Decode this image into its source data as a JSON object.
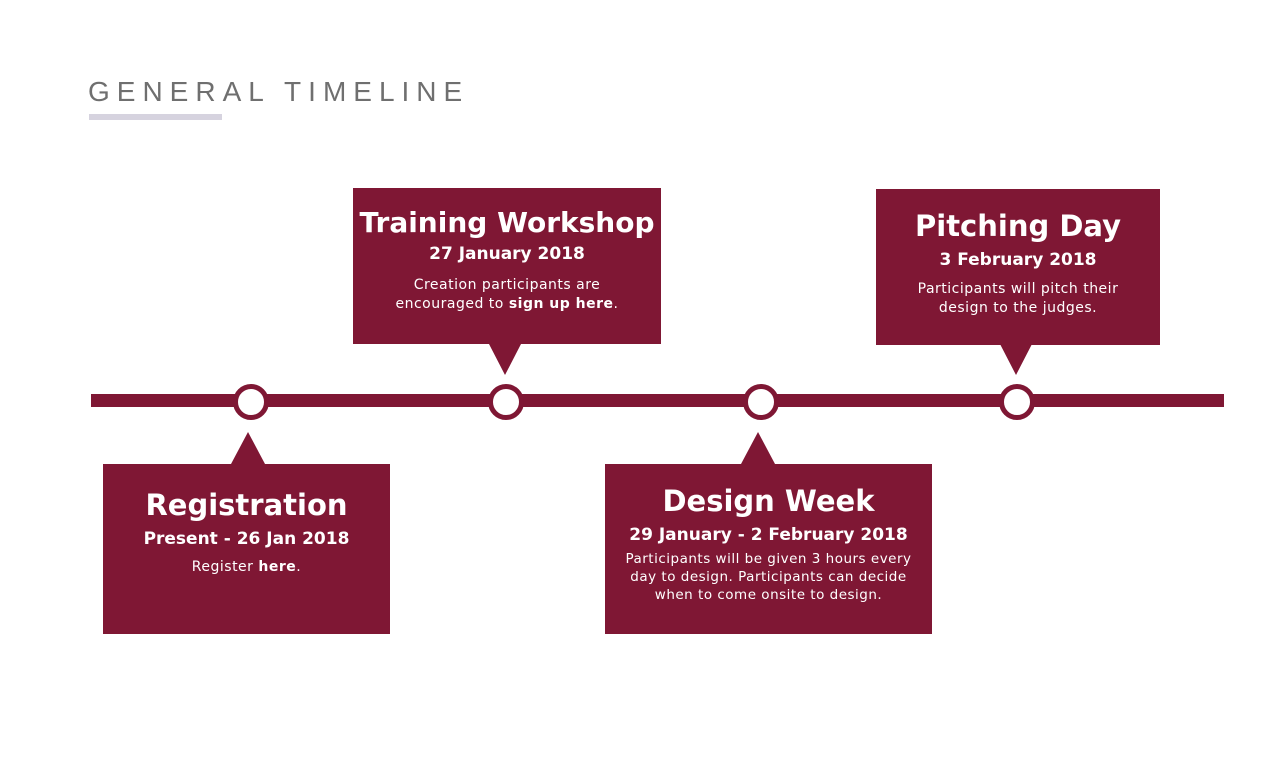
{
  "heading": "GENERAL TIMELINE",
  "colors": {
    "accent": "#7f1734",
    "heading_text": "#6f6f6f",
    "underline": "#d6d3df"
  },
  "events": [
    {
      "title": "Registration",
      "date": "Present - 26 Jan 2018",
      "desc_before": "Register ",
      "link": "here",
      "desc_after": "."
    },
    {
      "title": "Training Workshop",
      "date": "27 January 2018",
      "desc_before": "Creation participants are encouraged to ",
      "link": "sign up here",
      "desc_after": "."
    },
    {
      "title": "Design Week",
      "date": "29 January - 2 February 2018",
      "desc": "Participants will be given 3 hours every day to design. Participants can decide when to come onsite to design."
    },
    {
      "title": "Pitching Day",
      "date": "3 February 2018",
      "desc": "Participants will pitch their design to the judges."
    }
  ]
}
